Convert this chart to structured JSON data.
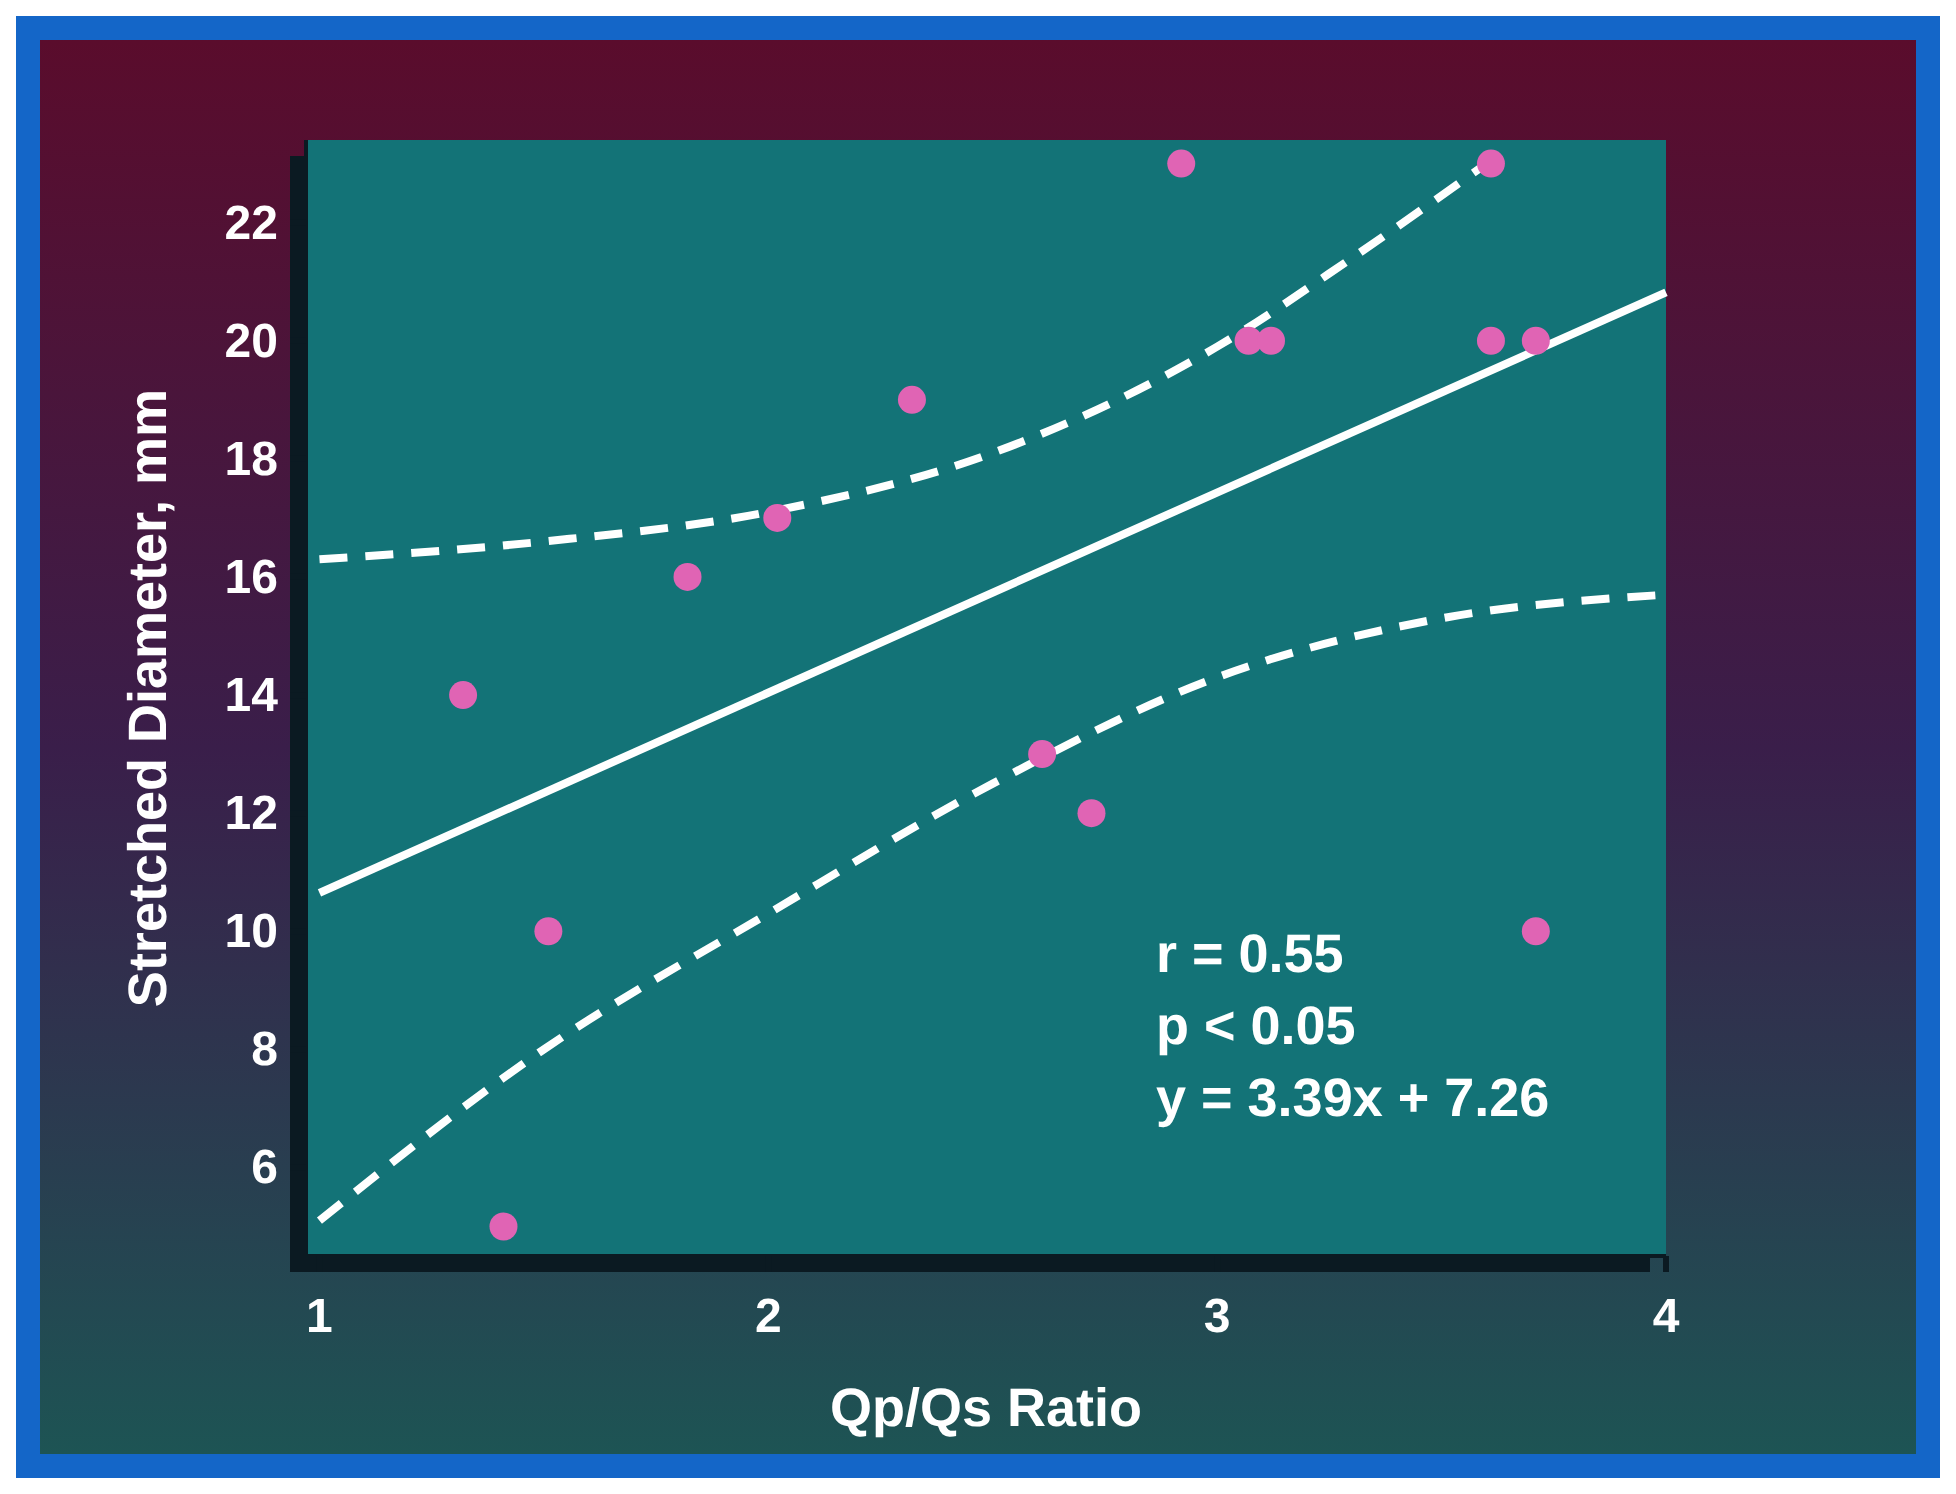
{
  "chart_data": {
    "type": "scatter",
    "xlabel": "Qp/Qs Ratio",
    "ylabel": "Stretched Diameter, mm",
    "xlim": [
      0.97,
      4
    ],
    "ylim": [
      4.5,
      23.4
    ],
    "xticks": [
      1,
      2,
      3,
      4
    ],
    "yticks": [
      6,
      8,
      10,
      12,
      14,
      16,
      18,
      20,
      22
    ],
    "grid": false,
    "annotations": [
      "r = 0.55",
      "p < 0.05",
      "y = 3.39x + 7.26"
    ],
    "series": [
      {
        "color": "#e064b4",
        "marker": "circle",
        "x": [
          1.32,
          1.41,
          1.51,
          1.82,
          2.02,
          2.32,
          2.61,
          2.72,
          2.92,
          3.07,
          3.12,
          3.61,
          3.61,
          3.71,
          3.71
        ],
        "values": [
          14,
          5,
          10,
          16,
          17,
          19,
          13,
          12,
          23,
          20,
          20,
          23,
          20,
          20,
          10
        ]
      },
      {
        "type": "line",
        "color": "#ffffff",
        "line_style": "solid",
        "x": [
          1,
          4
        ],
        "values": [
          10.65,
          20.82
        ]
      },
      {
        "type": "line",
        "color": "#ffffff",
        "line_style": "dashed",
        "x": [
          1,
          1.5,
          2,
          2.5,
          3,
          3.3,
          3.6
        ],
        "values": [
          16.3,
          16.6,
          17.1,
          18.1,
          19.9,
          21.4,
          23
        ]
      },
      {
        "type": "line",
        "color": "#ffffff",
        "line_style": "dashed",
        "x": [
          1,
          1.5,
          2,
          2.5,
          3,
          3.5,
          4
        ],
        "values": [
          5.1,
          8,
          10.3,
          12.5,
          14.3,
          15.3,
          15.7
        ]
      }
    ]
  }
}
